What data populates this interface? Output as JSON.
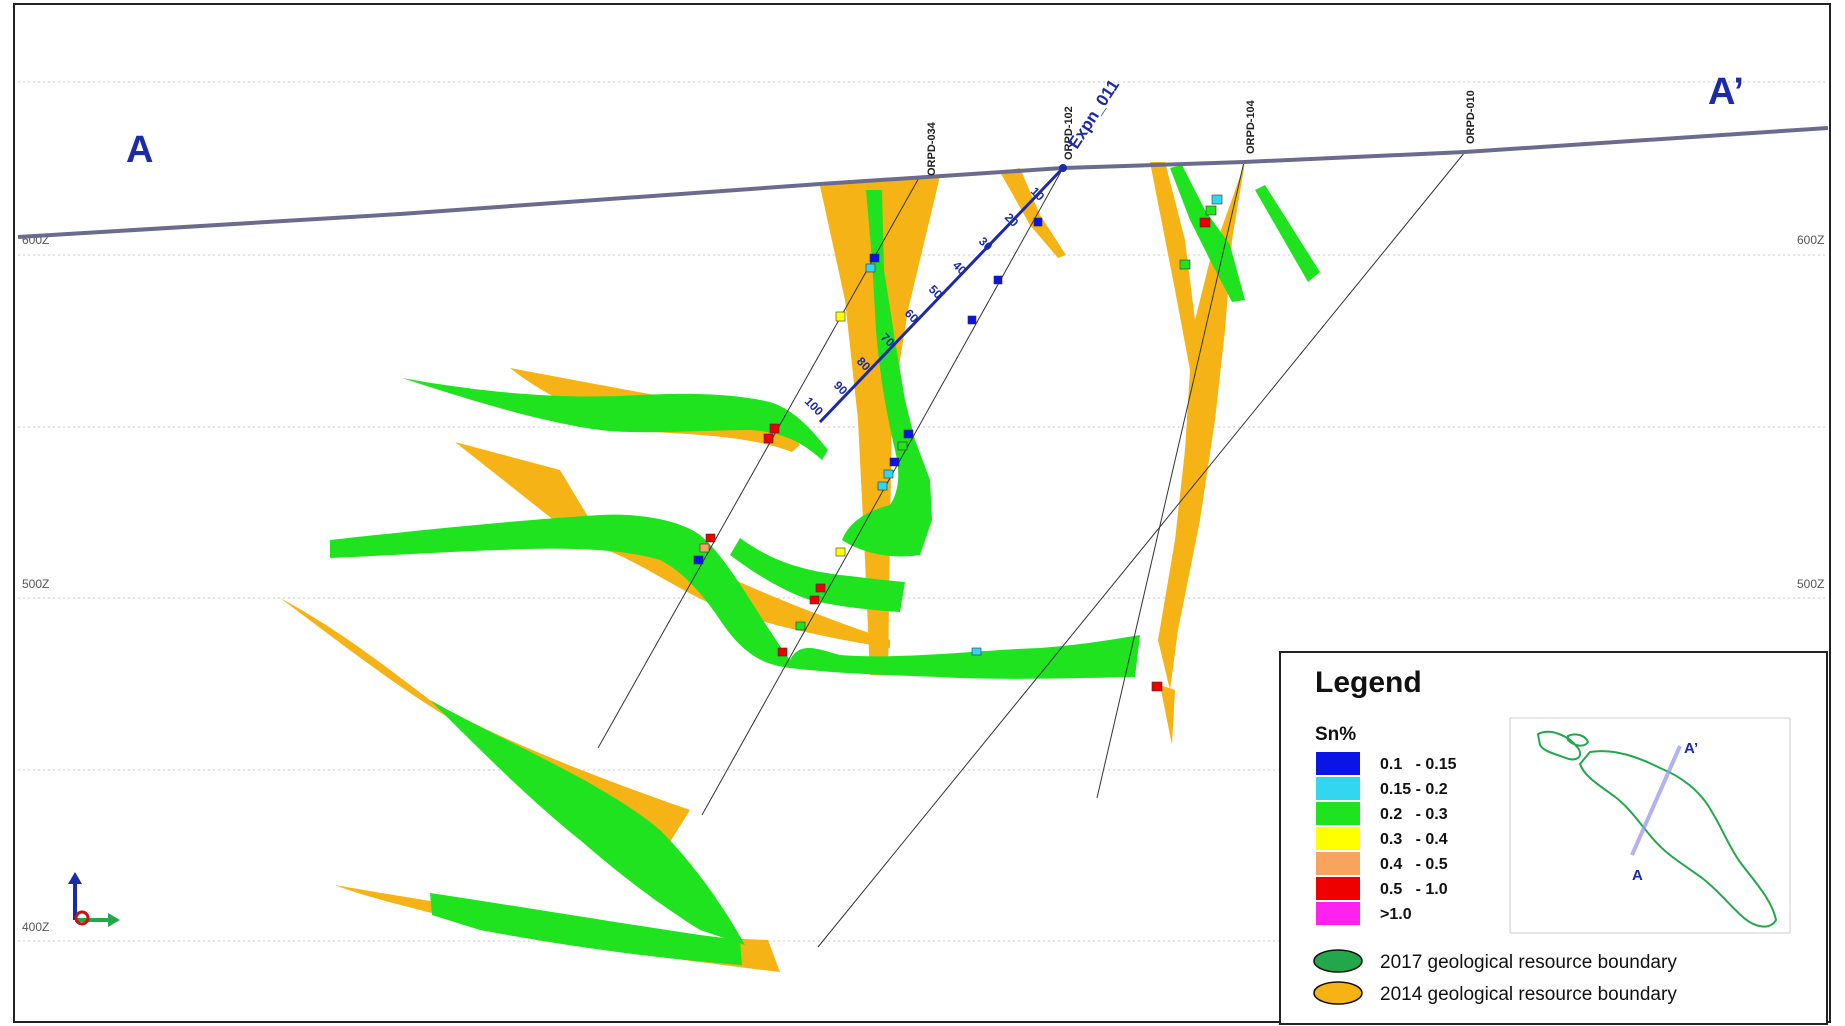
{
  "section": {
    "start_label": "A",
    "end_label": "A’",
    "colors": {
      "section_text": "#1b2aa8",
      "topography": "#6b6b8f",
      "hole_line": "#333333"
    }
  },
  "elevations": [
    {
      "label": "600Z",
      "side": "both"
    },
    {
      "label": "500Z",
      "side": "both"
    },
    {
      "label": "400Z",
      "side": "left"
    }
  ],
  "drillholes": [
    {
      "name": "ORPD-034"
    },
    {
      "name": "ORPD-102"
    },
    {
      "name": "ORPD-104"
    },
    {
      "name": "ORPD-010"
    }
  ],
  "planned_hole": {
    "name": "Expn_011",
    "depth_ticks": [
      "10",
      "20",
      "30",
      "40",
      "50",
      "60",
      "70",
      "80",
      "90",
      "100"
    ]
  },
  "legend": {
    "title": "Legend",
    "grade_title": "Sn%",
    "grades": [
      {
        "label": "0.1   - 0.15",
        "color": "#0a14e6"
      },
      {
        "label": "0.15 - 0.2",
        "color": "#33d6f0"
      },
      {
        "label": "0.2   - 0.3",
        "color": "#1fe31f"
      },
      {
        "label": "0.3   - 0.4",
        "color": "#ffff00"
      },
      {
        "label": "0.4   - 0.5",
        "color": "#f9a45e"
      },
      {
        "label": "0.5   - 1.0",
        "color": "#ee0000"
      },
      {
        "label": ">1.0",
        "color": "#ff22ee"
      }
    ],
    "boundaries": [
      {
        "label": "2017 geological resource boundary",
        "color": "#22a84a"
      },
      {
        "label": "2014 geological resource boundary",
        "color": "#f5b316"
      }
    ],
    "inset": {
      "start_label": "A",
      "end_label": "A’"
    }
  },
  "colors": {
    "resource_2014": "#f5b316",
    "resource_2017": "#1fe31f"
  }
}
